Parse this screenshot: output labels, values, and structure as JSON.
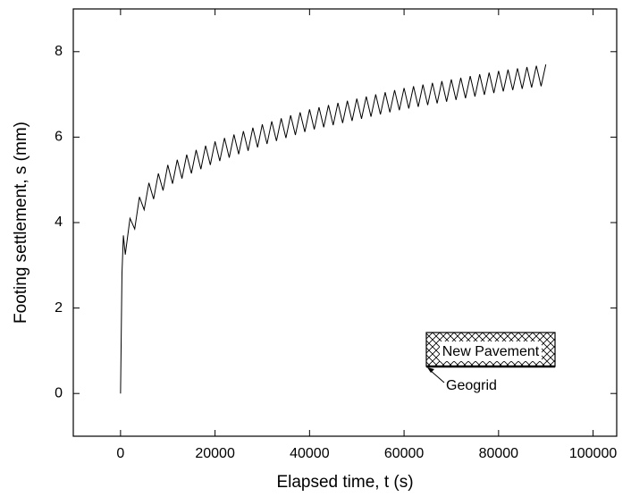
{
  "chart_data": {
    "type": "line",
    "xlabel": "Elapsed time, t (s)",
    "ylabel": "Footing settlement, s (mm)",
    "x": [
      0,
      300,
      600,
      1000,
      2000,
      3000,
      4000,
      5000,
      6000,
      7000,
      8000,
      9000,
      10000,
      11000,
      12000,
      13000,
      14000,
      15000,
      16000,
      17000,
      18000,
      19000,
      20000,
      21000,
      22000,
      23000,
      24000,
      25000,
      26000,
      27000,
      28000,
      29000,
      30000,
      31000,
      32000,
      33000,
      34000,
      35000,
      36000,
      37000,
      38000,
      39000,
      40000,
      41000,
      42000,
      43000,
      44000,
      45000,
      46000,
      47000,
      48000,
      49000,
      50000,
      51000,
      52000,
      53000,
      54000,
      55000,
      56000,
      57000,
      58000,
      59000,
      60000,
      61000,
      62000,
      63000,
      64000,
      65000,
      66000,
      67000,
      68000,
      69000,
      70000,
      71000,
      72000,
      73000,
      74000,
      75000,
      76000,
      77000,
      78000,
      79000,
      80000,
      81000,
      82000,
      83000,
      84000,
      85000,
      86000,
      87000,
      88000,
      89000,
      90000
    ],
    "values": [
      0,
      2.8,
      3.7,
      3.25,
      4.1,
      3.85,
      4.6,
      4.3,
      4.93,
      4.55,
      5.15,
      4.75,
      5.35,
      4.91,
      5.47,
      5.03,
      5.59,
      5.15,
      5.7,
      5.25,
      5.8,
      5.35,
      5.9,
      5.44,
      5.98,
      5.52,
      6.06,
      5.6,
      6.14,
      5.68,
      6.22,
      5.76,
      6.3,
      5.84,
      6.37,
      5.91,
      6.44,
      5.98,
      6.51,
      6.05,
      6.58,
      6.12,
      6.65,
      6.18,
      6.7,
      6.23,
      6.75,
      6.28,
      6.8,
      6.33,
      6.85,
      6.38,
      6.9,
      6.43,
      6.95,
      6.48,
      7.0,
      6.53,
      7.05,
      6.58,
      7.1,
      6.63,
      7.15,
      6.67,
      7.19,
      6.71,
      7.23,
      6.75,
      7.27,
      6.79,
      7.31,
      6.83,
      7.35,
      6.87,
      7.39,
      6.91,
      7.43,
      6.95,
      7.47,
      6.99,
      7.51,
      7.03,
      7.55,
      7.07,
      7.58,
      7.1,
      7.61,
      7.13,
      7.64,
      7.16,
      7.67,
      7.19,
      7.7
    ],
    "color": "#000000",
    "xlim": [
      -10000,
      105000
    ],
    "xticks": [
      0,
      20000,
      40000,
      60000,
      80000,
      100000
    ],
    "ylim": [
      -1,
      9
    ],
    "yticks": [
      0,
      2,
      4,
      6,
      8
    ],
    "annotations": [
      "New Pavement",
      "Geogrid"
    ]
  }
}
